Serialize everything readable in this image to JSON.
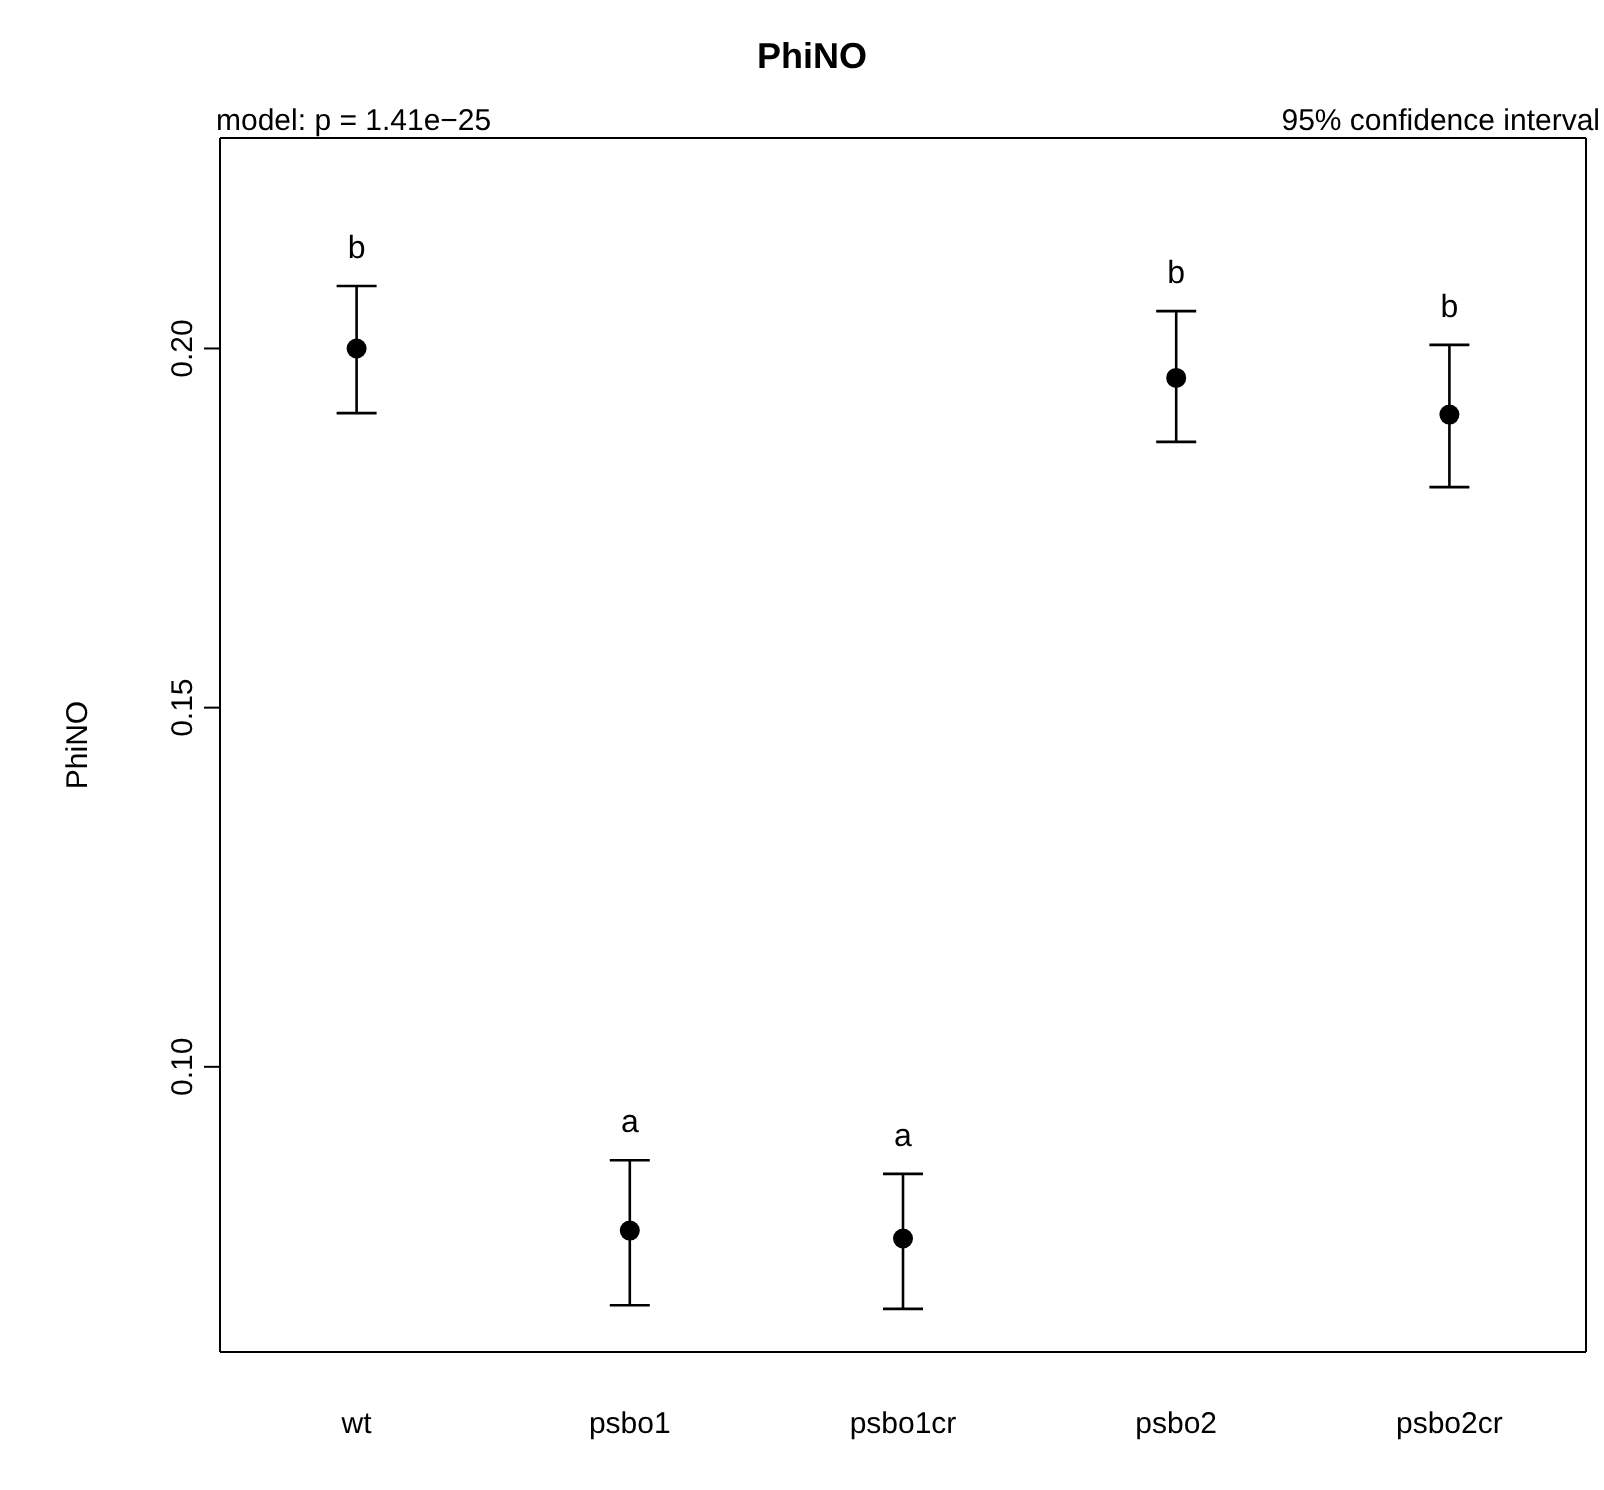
{
  "chart_data": {
    "type": "scatter",
    "title": "PhiNO",
    "ylabel": "PhiNO",
    "categories": [
      "wt",
      "psbo1",
      "psbo1cr",
      "psbo2",
      "psbo2cr"
    ],
    "values": [
      0.2,
      0.0772,
      0.0761,
      0.1959,
      0.1908
    ],
    "errors": [
      [
        0.191,
        0.2087
      ],
      [
        0.0668,
        0.087
      ],
      [
        0.0663,
        0.0851
      ],
      [
        0.187,
        0.2052
      ],
      [
        0.1807,
        0.2005
      ]
    ],
    "color": "#000000",
    "marker": "circle",
    "ylim": [
      0.0603,
      0.2293
    ],
    "yticks": [
      {
        "value": 0.1,
        "label": "0.10"
      },
      0.15,
      {
        "value": 0.2,
        "label": "0.20"
      }
    ],
    "grid": false,
    "legend": false,
    "annotations": [
      "model: p =  1.41e−25",
      "95% confidence interval",
      {
        "text": "b",
        "x": "wt",
        "y": 0.2087
      },
      {
        "text": "a",
        "x": "psbo1",
        "y": 0.087
      },
      {
        "text": "a",
        "x": "psbo1cr",
        "y": 0.0851
      },
      {
        "text": "b",
        "x": "psbo2",
        "y": 0.2052
      },
      {
        "text": "b",
        "x": "psbo2cr",
        "y": 0.2005
      }
    ]
  }
}
